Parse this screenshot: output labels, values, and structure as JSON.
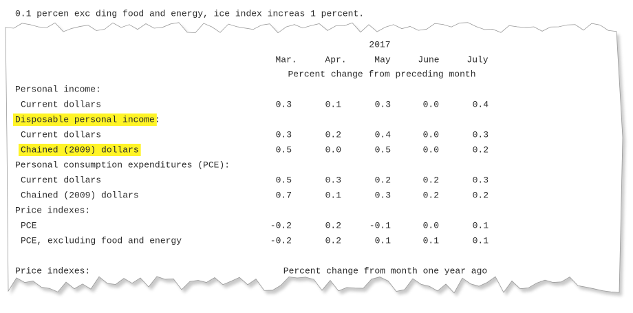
{
  "intro": "0.1 percen  exc  ding food and energy,   ice index increas  1 percent.",
  "header": {
    "year": "2017",
    "months": [
      "Mar.",
      "Apr.",
      "May",
      "June",
      "July"
    ],
    "subtitle": "Percent change from preceding month"
  },
  "rows": [
    {
      "label": "Personal income:",
      "indent": false
    },
    {
      "label": "Current dollars",
      "indent": true,
      "values": [
        "0.3",
        "0.1",
        "0.3",
        "0.0",
        "0.4"
      ]
    },
    {
      "label": "Disposable personal income",
      "suffix": ":",
      "indent": false,
      "highlighted": true
    },
    {
      "label": "Current dollars",
      "indent": true,
      "values": [
        "0.3",
        "0.2",
        "0.4",
        "0.0",
        "0.3"
      ]
    },
    {
      "label": "Chained (2009) dollars",
      "indent": true,
      "highlighted": true,
      "values": [
        "0.5",
        "0.0",
        "0.5",
        "0.0",
        "0.2"
      ]
    },
    {
      "label": "Personal consumption expenditures (PCE):",
      "indent": false
    },
    {
      "label": "Current dollars",
      "indent": true,
      "values": [
        "0.5",
        "0.3",
        "0.2",
        "0.2",
        "0.3"
      ]
    },
    {
      "label": "Chained (2009) dollars",
      "indent": true,
      "values": [
        "0.7",
        "0.1",
        "0.3",
        "0.2",
        "0.2"
      ]
    },
    {
      "label": "Price indexes:",
      "indent": false
    },
    {
      "label": "PCE",
      "indent": true,
      "values": [
        "-0.2",
        "0.2",
        "-0.1",
        "0.0",
        "0.1"
      ]
    },
    {
      "label": "PCE, excluding food and energy",
      "indent": true,
      "values": [
        "-0.2",
        "0.2",
        "0.1",
        "0.1",
        "0.1"
      ]
    }
  ],
  "footer": {
    "label": "Price indexes:",
    "subtitle": "Percent change from month one year ago"
  }
}
